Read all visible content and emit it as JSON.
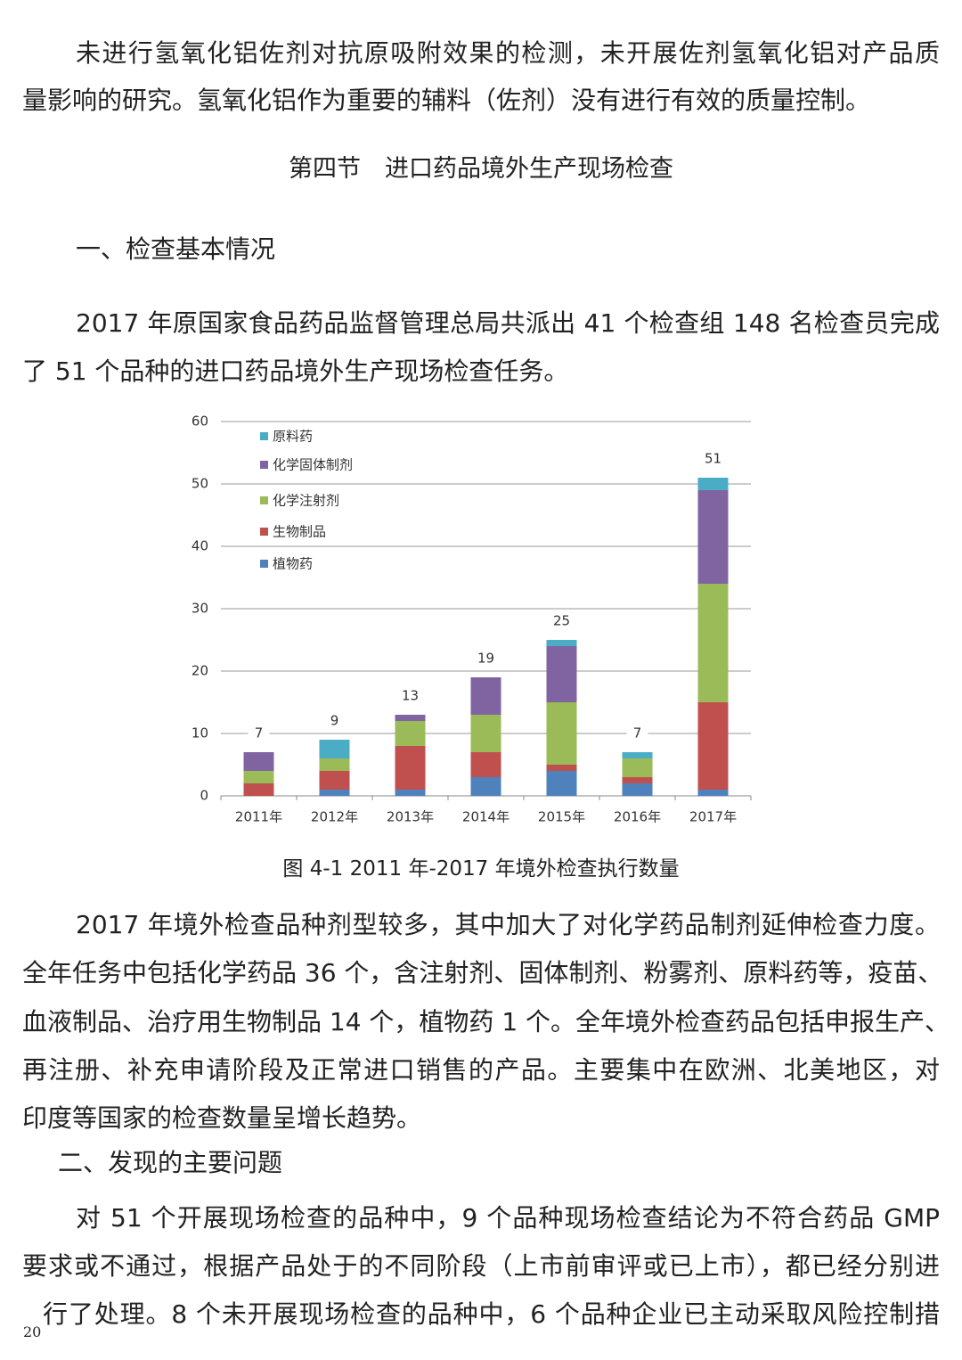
{
  "paragraph_1": {
    "lines": [
      "未进行氢氧化铝佐剂对抗原吸附效果的检测，未开展佐剂氢氧化铝对产品质",
      "量影响的研究。氢氧化铝作为重要的辅料（佐剂）没有进行有效的质量控制。"
    ]
  },
  "section_title": "第四节　进口药品境外生产现场检查",
  "heading_1": "一、检查基本情况",
  "paragraph_2": {
    "lines": [
      "2017 年原国家食品药品监督管理总局共派出 41 个检查组 148 名检查员完成",
      "了 51 个品种的进口药品境外生产现场检查任务。"
    ]
  },
  "chart_data": {
    "type": "stacked_bar",
    "categories": [
      "2011年",
      "2012年",
      "2013年",
      "2014年",
      "2015年",
      "2016年",
      "2017年"
    ],
    "series": [
      {
        "name": "植物药",
        "color": "#4f81bd",
        "values": [
          0,
          1,
          1,
          3,
          4,
          2,
          1
        ]
      },
      {
        "name": "生物制品",
        "color": "#c0504d",
        "values": [
          2,
          3,
          7,
          4,
          1,
          1,
          14
        ]
      },
      {
        "name": "化学注射剂",
        "color": "#9bbb59",
        "values": [
          2,
          2,
          4,
          6,
          10,
          3,
          19
        ]
      },
      {
        "name": "化学固体制剂",
        "color": "#8064a2",
        "values": [
          3,
          0,
          1,
          6,
          9,
          0,
          15
        ]
      },
      {
        "name": "原料药",
        "color": "#4bacc6",
        "values": [
          0,
          3,
          0,
          0,
          1,
          1,
          2
        ]
      }
    ],
    "totals": [
      7,
      9,
      13,
      19,
      25,
      7,
      51
    ],
    "ylim": [
      0,
      60
    ],
    "yticks": [
      0,
      10,
      20,
      30,
      40,
      50,
      60
    ],
    "grid": true,
    "legend": "upper left"
  },
  "figure_caption": "图 4-1  2011 年-2017 年境外检查执行数量",
  "paragraph_3": {
    "lines": [
      "2017 年境外检查品种剂型较多，其中加大了对化学药品制剂延伸检查力度。",
      "全年任务中包括化学药品 36 个，含注射剂、固体制剂、粉雾剂、原料药等，疫苗、",
      "血液制品、治疗用生物制品 14 个，植物药 1 个。全年境外检查药品包括申报生产、",
      "再注册、补充申请阶段及正常进口销售的产品。主要集中在欧洲、北美地区，对",
      "印度等国家的检查数量呈增长趋势。"
    ]
  },
  "heading_2": "二、发现的主要问题",
  "paragraph_4": {
    "lines": [
      "对 51 个开展现场检查的品种中，9 个品种现场检查结论为不符合药品 GMP",
      "要求或不通过，根据产品处于的不同阶段（上市前审评或已上市），都已经分别进",
      "行了处理。8 个未开展现场检查的品种中，6 个品种企业已主动采取风险控制措"
    ]
  },
  "page_number": "20"
}
